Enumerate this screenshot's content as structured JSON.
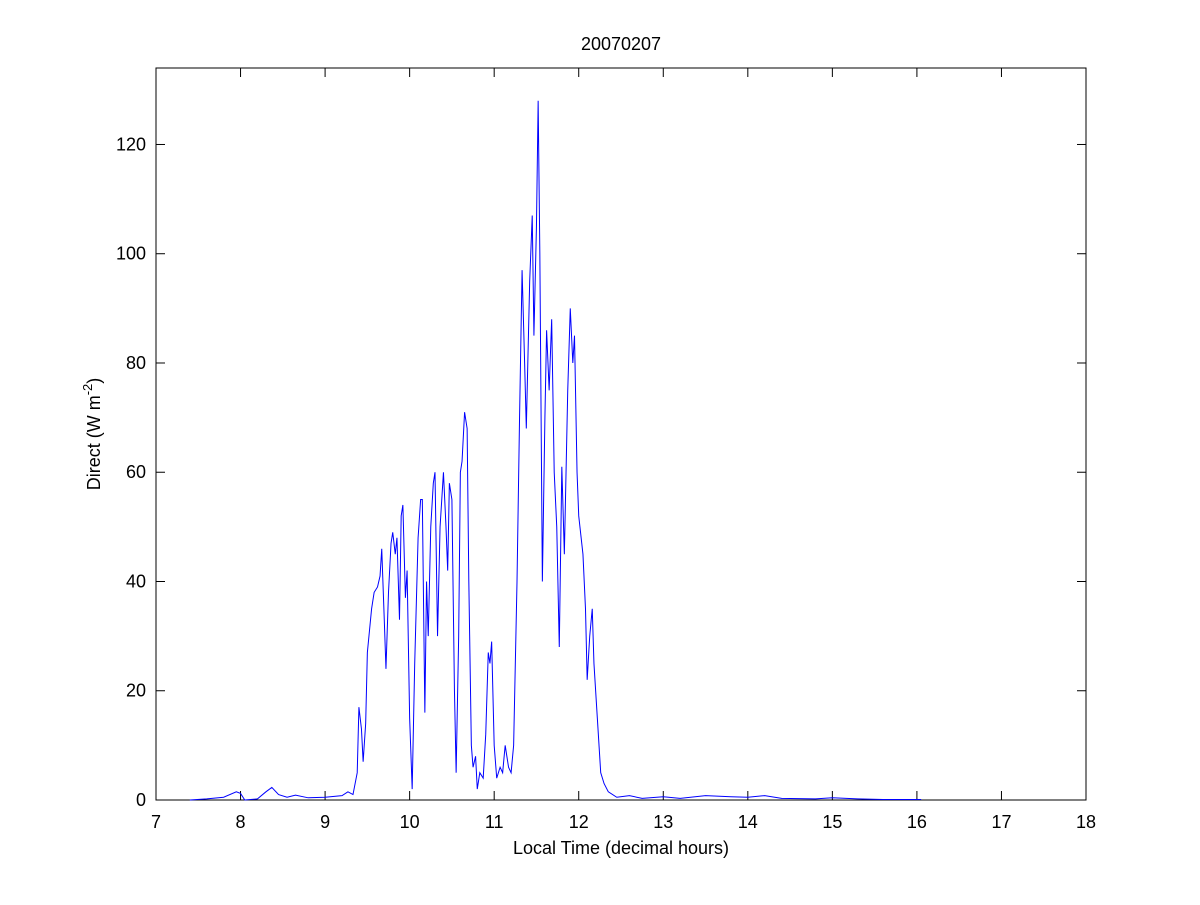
{
  "chart_data": {
    "type": "line",
    "title": "20070207",
    "xlabel": "Local Time (decimal hours)",
    "ylabel": "Direct (W m",
    "ylabel_sup": "-2",
    "ylabel_end": ")",
    "color": "#0000ff",
    "xlim": [
      7,
      18
    ],
    "xticks": [
      7,
      8,
      9,
      10,
      11,
      12,
      13,
      14,
      15,
      16,
      17,
      18
    ],
    "ylim": [
      0,
      134
    ],
    "yticks": [
      0,
      20,
      40,
      60,
      80,
      100,
      120
    ],
    "x": [
      7.4,
      7.6,
      7.8,
      7.95,
      8.0,
      8.05,
      8.2,
      8.3,
      8.37,
      8.45,
      8.55,
      8.65,
      8.8,
      9.0,
      9.2,
      9.27,
      9.33,
      9.38,
      9.4,
      9.43,
      9.45,
      9.48,
      9.5,
      9.55,
      9.58,
      9.62,
      9.65,
      9.67,
      9.7,
      9.72,
      9.75,
      9.78,
      9.8,
      9.83,
      9.85,
      9.88,
      9.9,
      9.92,
      9.95,
      9.97,
      10.0,
      10.03,
      10.06,
      10.1,
      10.13,
      10.15,
      10.18,
      10.2,
      10.22,
      10.25,
      10.28,
      10.3,
      10.33,
      10.36,
      10.4,
      10.43,
      10.45,
      10.47,
      10.5,
      10.53,
      10.55,
      10.58,
      10.6,
      10.62,
      10.65,
      10.68,
      10.7,
      10.73,
      10.75,
      10.78,
      10.8,
      10.83,
      10.87,
      10.9,
      10.93,
      10.95,
      10.97,
      11.0,
      11.03,
      11.07,
      11.1,
      11.13,
      11.17,
      11.2,
      11.23,
      11.27,
      11.3,
      11.33,
      11.36,
      11.38,
      11.42,
      11.45,
      11.47,
      11.5,
      11.52,
      11.54,
      11.57,
      11.6,
      11.62,
      11.65,
      11.68,
      11.71,
      11.74,
      11.77,
      11.8,
      11.83,
      11.87,
      11.9,
      11.93,
      11.95,
      11.98,
      12.0,
      12.05,
      12.08,
      12.1,
      12.13,
      12.16,
      12.18,
      12.22,
      12.26,
      12.3,
      12.35,
      12.45,
      12.6,
      12.75,
      13.0,
      13.2,
      13.5,
      13.8,
      14.0,
      14.2,
      14.4,
      14.8,
      15.0,
      15.3,
      15.6,
      16.05
    ],
    "values": [
      0,
      0.2,
      0.5,
      1.5,
      1.2,
      0,
      0.2,
      1.5,
      2.3,
      1,
      0.5,
      0.9,
      0.4,
      0.5,
      0.8,
      1.5,
      1,
      5,
      17,
      13,
      7,
      14,
      27,
      35,
      38,
      39,
      41,
      46,
      33,
      24,
      38,
      47,
      49,
      45,
      48,
      33,
      52,
      54,
      37,
      42,
      15,
      2,
      25,
      48,
      55,
      55,
      16,
      40,
      30,
      50,
      58,
      60,
      30,
      50,
      60,
      50,
      42,
      58,
      55,
      20,
      5,
      30,
      60,
      62,
      71,
      68,
      40,
      10,
      6,
      8,
      2,
      5,
      4,
      12,
      27,
      25,
      29,
      10,
      4,
      6,
      5,
      10,
      6,
      5,
      10,
      40,
      70,
      97,
      80,
      68,
      95,
      107,
      85,
      105,
      128,
      100,
      40,
      70,
      86,
      75,
      88,
      60,
      50,
      28,
      61,
      45,
      75,
      90,
      80,
      85,
      60,
      52,
      45,
      35,
      22,
      30,
      35,
      25,
      15,
      5,
      3,
      1.5,
      0.5,
      0.8,
      0.3,
      0.6,
      0.3,
      0.8,
      0.6,
      0.5,
      0.8,
      0.3,
      0.2,
      0.4,
      0.2,
      0.1,
      0.1
    ]
  }
}
